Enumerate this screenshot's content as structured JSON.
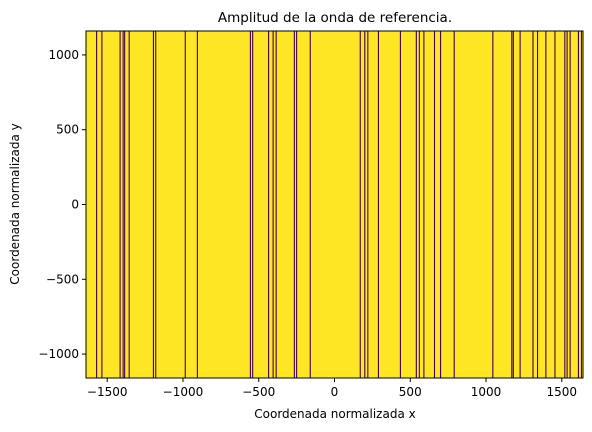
{
  "chart_data": {
    "type": "heatmap",
    "title": "Amplitud de la onda de referencia.",
    "xlabel": "Coordenada normalizada x",
    "ylabel": "Coordenada normalizada y",
    "xlim": [
      -1640,
      1640
    ],
    "ylim": [
      -1160,
      1160
    ],
    "xticks": [
      -1500,
      -1000,
      -500,
      0,
      500,
      1000,
      1500
    ],
    "xtick_labels": [
      "−1500",
      "−1000",
      "−500",
      "0",
      "500",
      "1000",
      "1500"
    ],
    "yticks": [
      -1000,
      -500,
      0,
      500,
      1000
    ],
    "ytick_labels": [
      "−1000",
      "−500",
      "0",
      "500",
      "1000"
    ],
    "fill_value_color": "#fde725",
    "line_color": "#440154",
    "grid": false,
    "vertical_lines_x": [
      -1570,
      -1535,
      -1415,
      -1395,
      -1385,
      -1355,
      -1195,
      -1180,
      -985,
      -905,
      -555,
      -540,
      -435,
      -405,
      -385,
      -265,
      -250,
      -160,
      170,
      200,
      220,
      290,
      435,
      540,
      560,
      590,
      660,
      700,
      790,
      1045,
      1170,
      1180,
      1225,
      1310,
      1340,
      1395,
      1455,
      1520,
      1535,
      1555,
      1610,
      1630
    ]
  }
}
